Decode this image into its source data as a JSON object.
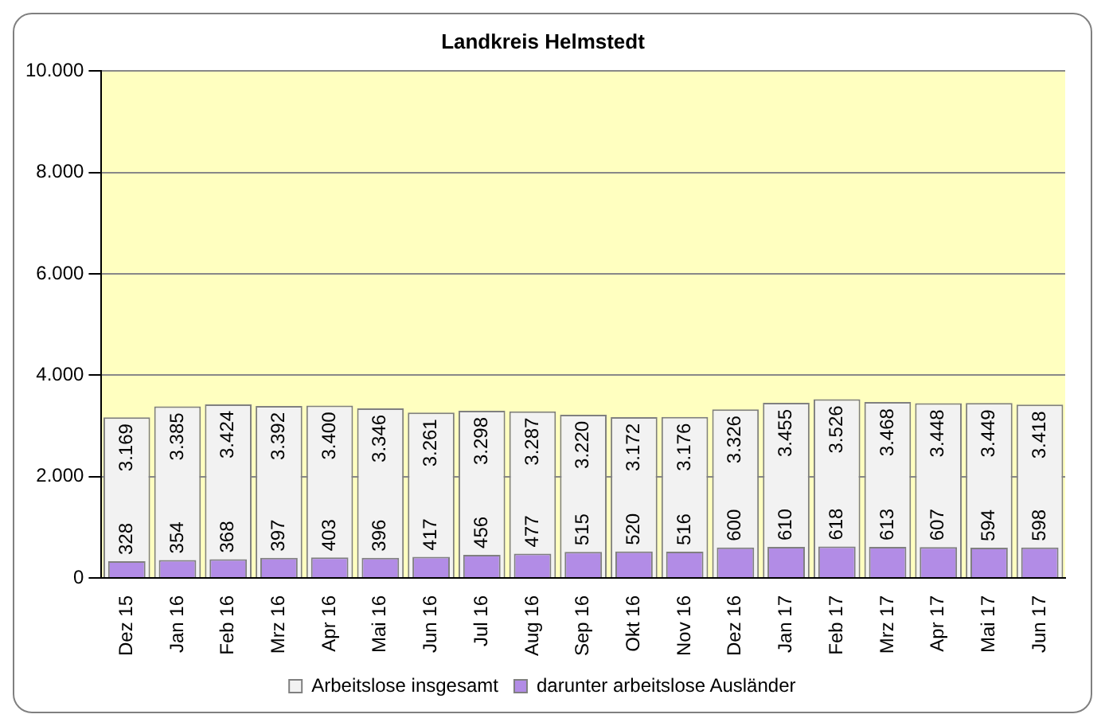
{
  "chart_data": {
    "type": "bar",
    "title": "Landkreis Helmstedt",
    "categories": [
      "Dez 15",
      "Jan 16",
      "Feb 16",
      "Mrz 16",
      "Apr 16",
      "Mai 16",
      "Jun 16",
      "Jul 16",
      "Aug 16",
      "Sep 16",
      "Okt 16",
      "Nov 16",
      "Dez 16",
      "Jan 17",
      "Feb 17",
      "Mrz 17",
      "Apr 17",
      "Mai 17",
      "Jun 17"
    ],
    "series": [
      {
        "name": "Arbeitslose insgesamt",
        "color": "#f2f2f2",
        "values": [
          3169,
          3385,
          3424,
          3392,
          3400,
          3346,
          3261,
          3298,
          3287,
          3220,
          3172,
          3176,
          3326,
          3455,
          3526,
          3468,
          3448,
          3449,
          3418
        ],
        "value_labels": [
          "3.169",
          "3.385",
          "3.424",
          "3.392",
          "3.400",
          "3.346",
          "3.261",
          "3.298",
          "3.287",
          "3.220",
          "3.172",
          "3.176",
          "3.326",
          "3.455",
          "3.526",
          "3.468",
          "3.448",
          "3.449",
          "3.418"
        ]
      },
      {
        "name": "darunter arbeitslose Ausländer",
        "color": "#b28ce6",
        "values": [
          328,
          354,
          368,
          397,
          403,
          396,
          417,
          456,
          477,
          515,
          520,
          516,
          600,
          610,
          618,
          613,
          607,
          594,
          598
        ],
        "value_labels": [
          "328",
          "354",
          "368",
          "397",
          "403",
          "396",
          "417",
          "456",
          "477",
          "515",
          "520",
          "516",
          "600",
          "610",
          "618",
          "613",
          "607",
          "594",
          "598"
        ]
      }
    ],
    "ylim": [
      0,
      10000
    ],
    "yticks": [
      {
        "value": 0,
        "label": "0"
      },
      {
        "value": 2000,
        "label": "2.000"
      },
      {
        "value": 4000,
        "label": "4.000"
      },
      {
        "value": 6000,
        "label": "6.000"
      },
      {
        "value": 8000,
        "label": "8.000"
      },
      {
        "value": 10000,
        "label": "10.000"
      }
    ],
    "grid": "y",
    "legend": "bottom"
  }
}
